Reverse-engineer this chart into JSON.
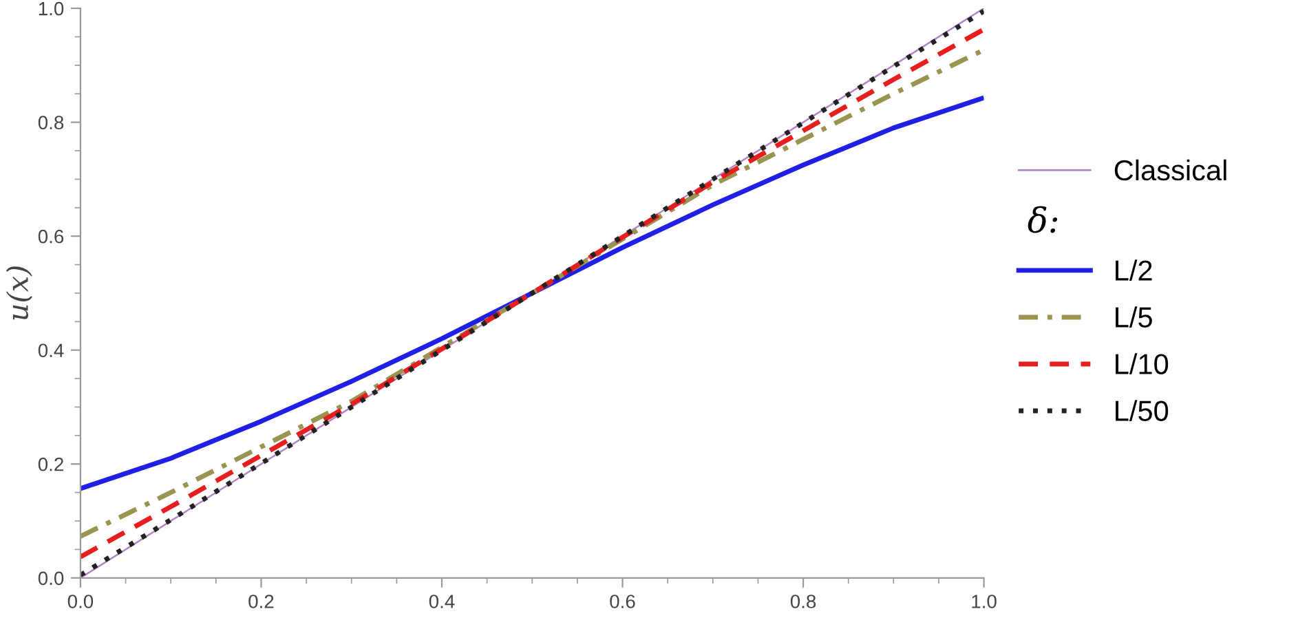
{
  "chart_data": {
    "type": "line",
    "ylabel": "u(x)",
    "legend_title": "δ:",
    "legend": "right",
    "grid": false,
    "xlim": [
      0,
      1
    ],
    "ylim": [
      0,
      1
    ],
    "xticks": [
      {
        "value": 0,
        "label": "0.0"
      },
      0.2,
      0.4,
      0.6,
      0.8,
      {
        "value": 1,
        "label": "1.0"
      }
    ],
    "yticks": [
      {
        "value": 0,
        "label": "0.0"
      },
      0.2,
      0.4,
      0.6,
      0.8,
      {
        "value": 1,
        "label": "1.0"
      }
    ],
    "series": [
      {
        "name": "Classical",
        "color": "#b084c8",
        "line_style": "solid",
        "x": [
          0,
          1
        ],
        "values": [
          0,
          1
        ]
      },
      {
        "name": "L/2",
        "color": "#1f1fe6",
        "line_style": "solid",
        "x": [
          0,
          0.1,
          0.2,
          0.3,
          0.4,
          0.5,
          0.6,
          0.7,
          0.8,
          0.9,
          1
        ],
        "values": [
          0.157,
          0.21,
          0.275,
          0.345,
          0.42,
          0.5,
          0.58,
          0.655,
          0.725,
          0.79,
          0.843
        ]
      },
      {
        "name": "L/5",
        "color": "#9a9450",
        "line_style": "dashdot",
        "x": [
          0,
          0.1,
          0.2,
          0.3,
          0.4,
          0.5,
          0.6,
          0.7,
          0.8,
          0.9,
          1
        ],
        "values": [
          0.073,
          0.15,
          0.23,
          0.31,
          0.405,
          0.5,
          0.595,
          0.69,
          0.77,
          0.85,
          0.927
        ]
      },
      {
        "name": "L/10",
        "color": "#e61e1e",
        "line_style": "dashed",
        "x": [
          0,
          0.1,
          0.2,
          0.3,
          0.4,
          0.5,
          0.6,
          0.7,
          0.8,
          0.9,
          1
        ],
        "values": [
          0.037,
          0.125,
          0.215,
          0.305,
          0.402,
          0.5,
          0.598,
          0.695,
          0.785,
          0.875,
          0.963
        ]
      },
      {
        "name": "L/50",
        "color": "#222222",
        "line_style": "dotted",
        "x": [
          0,
          0.1,
          0.2,
          0.3,
          0.4,
          0.5,
          0.6,
          0.7,
          0.8,
          0.9,
          1
        ],
        "values": [
          0.005,
          0.102,
          0.201,
          0.3,
          0.4,
          0.5,
          0.6,
          0.7,
          0.799,
          0.898,
          0.995
        ]
      }
    ]
  }
}
